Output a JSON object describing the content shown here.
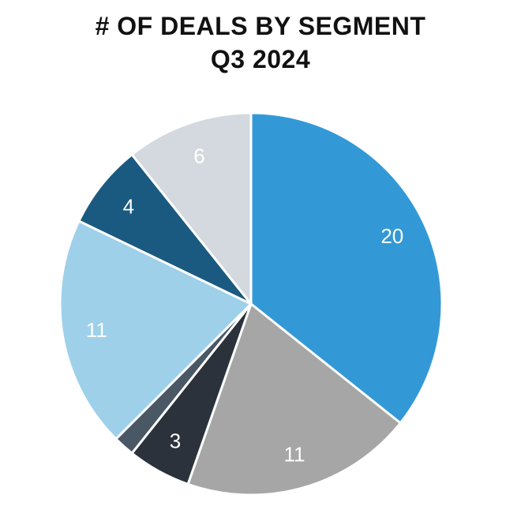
{
  "chart_data": {
    "type": "pie",
    "title": "# OF DEALS BY SEGMENT",
    "subtitle": "Q3 2024",
    "legend": "none",
    "slices": [
      {
        "value": 20,
        "label": "20",
        "color": "#3399d6",
        "label_color": "#ffffff"
      },
      {
        "value": 11,
        "label": "11",
        "color": "#a6a6a6",
        "label_color": "#ffffff"
      },
      {
        "value": 3,
        "label": "3",
        "color": "#2b323b",
        "label_color": "#ffffff"
      },
      {
        "value": 1,
        "label": "",
        "color": "#4a5866",
        "label_color": "#ffffff"
      },
      {
        "value": 11,
        "label": "11",
        "color": "#9fd0ea",
        "label_color": "#ffffff"
      },
      {
        "value": 4,
        "label": "4",
        "color": "#1a5a80",
        "label_color": "#ffffff"
      },
      {
        "value": 6,
        "label": "6",
        "color": "#d3d9de",
        "label_color": "#ffffff"
      }
    ]
  }
}
